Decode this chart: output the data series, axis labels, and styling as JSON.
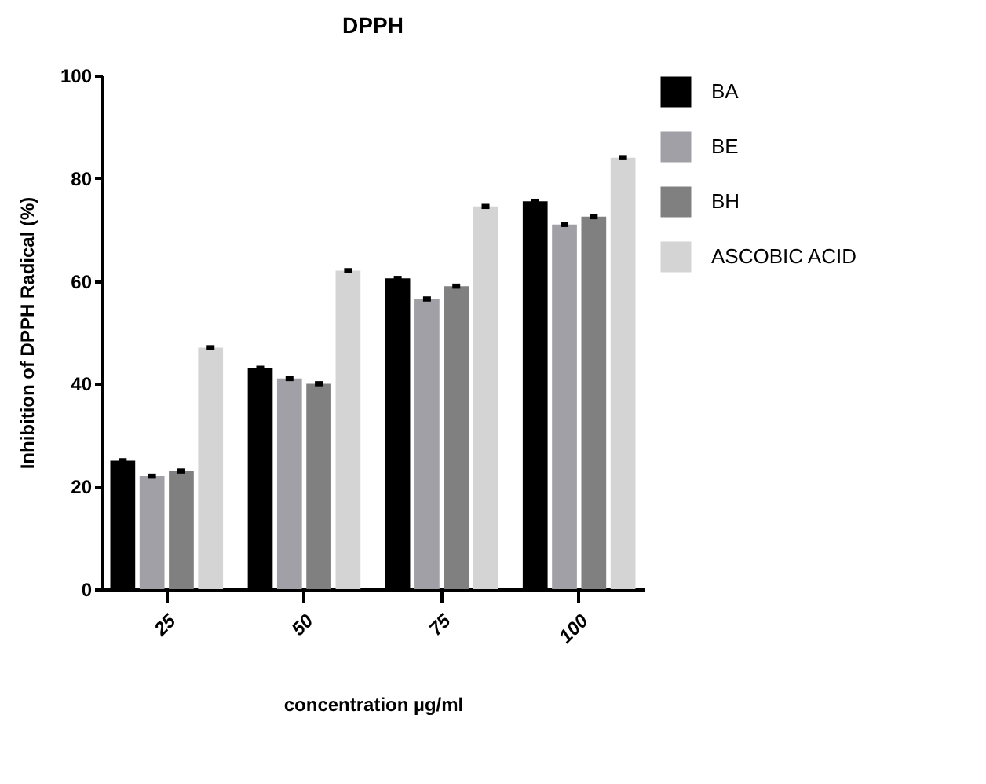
{
  "chart_data": {
    "type": "bar",
    "title": "DPPH",
    "xlabel": "concentration µg/ml",
    "ylabel": "Inhibition of DPPH Radical (%)",
    "categories": [
      "25",
      "50",
      "75",
      "100"
    ],
    "series": [
      {
        "name": "BA",
        "color": "#000000",
        "values": [
          25,
          43,
          60.5,
          75.5
        ],
        "errors": [
          0.5,
          0.5,
          0.5,
          0.5
        ]
      },
      {
        "name": "BE",
        "color": "#a0a0a6",
        "values": [
          22,
          41,
          56.5,
          71
        ],
        "errors": [
          0.5,
          0.5,
          0.5,
          0.5
        ]
      },
      {
        "name": "BH",
        "color": "#808080",
        "values": [
          23,
          40,
          59,
          72.5
        ],
        "errors": [
          0.5,
          0.5,
          0.5,
          0.5
        ]
      },
      {
        "name": "ASCOBIC ACID",
        "color": "#d4d4d4",
        "values": [
          47,
          62,
          74.5,
          84
        ],
        "errors": [
          0.5,
          0.5,
          0.5,
          0.5
        ]
      }
    ],
    "ylim": [
      0,
      100
    ],
    "yticks": [
      0,
      20,
      40,
      60,
      80,
      100
    ],
    "grid": false,
    "legend": "top right"
  }
}
